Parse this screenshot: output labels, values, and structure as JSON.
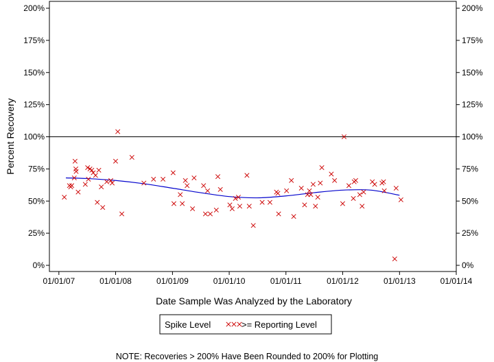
{
  "chart_data": {
    "type": "scatter",
    "xlabel": "Date Sample Was Analyzed by the Laboratory",
    "ylabel": "Percent Recovery",
    "x_ticks": [
      "01/01/07",
      "01/01/08",
      "01/01/09",
      "01/01/10",
      "01/01/11",
      "01/01/12",
      "01/01/13",
      "01/01/14"
    ],
    "y_ticks": [
      "0%",
      "25%",
      "50%",
      "75%",
      "100%",
      "125%",
      "150%",
      "175%",
      "200%"
    ],
    "ylim": [
      0,
      200
    ],
    "xlim": [
      "2006-11-01",
      "2014-01-01"
    ],
    "reference_line": 100,
    "colors": {
      "points": "#cc0000",
      "trend": "#0000cc",
      "reference": "#000000"
    },
    "series": [
      {
        "legend_group": "Spike Level",
        "name": ">= Reporting Level",
        "marker": "x",
        "points": [
          [
            "2007-02-05",
            53
          ],
          [
            "2007-03-10",
            62
          ],
          [
            "2007-03-18",
            61
          ],
          [
            "2007-03-25",
            62
          ],
          [
            "2007-04-10",
            68
          ],
          [
            "2007-04-15",
            81
          ],
          [
            "2007-04-20",
            75
          ],
          [
            "2007-04-22",
            73
          ],
          [
            "2007-05-05",
            57
          ],
          [
            "2007-06-20",
            63
          ],
          [
            "2007-07-05",
            76
          ],
          [
            "2007-07-10",
            67
          ],
          [
            "2007-07-20",
            75
          ],
          [
            "2007-08-01",
            74
          ],
          [
            "2007-08-10",
            72
          ],
          [
            "2007-08-25",
            70
          ],
          [
            "2007-09-05",
            49
          ],
          [
            "2007-09-15",
            74
          ],
          [
            "2007-10-01",
            61
          ],
          [
            "2007-10-10",
            45
          ],
          [
            "2007-11-05",
            65
          ],
          [
            "2007-12-01",
            66
          ],
          [
            "2007-12-10",
            64
          ],
          [
            "2008-01-01",
            81
          ],
          [
            "2008-01-15",
            104
          ],
          [
            "2008-02-10",
            40
          ],
          [
            "2008-04-15",
            84
          ],
          [
            "2008-07-01",
            64
          ],
          [
            "2008-09-01",
            67
          ],
          [
            "2008-11-01",
            67
          ],
          [
            "2009-01-05",
            72
          ],
          [
            "2009-01-10",
            48
          ],
          [
            "2009-02-20",
            55
          ],
          [
            "2009-03-05",
            48
          ],
          [
            "2009-03-25",
            66
          ],
          [
            "2009-04-05",
            62
          ],
          [
            "2009-05-10",
            44
          ],
          [
            "2009-05-20",
            68
          ],
          [
            "2009-07-20",
            62
          ],
          [
            "2009-08-01",
            40
          ],
          [
            "2009-08-15",
            58
          ],
          [
            "2009-09-01",
            40
          ],
          [
            "2009-10-10",
            43
          ],
          [
            "2009-10-20",
            69
          ],
          [
            "2009-11-05",
            59
          ],
          [
            "2010-01-05",
            47
          ],
          [
            "2010-01-20",
            44
          ],
          [
            "2010-02-10",
            52
          ],
          [
            "2010-03-01",
            53
          ],
          [
            "2010-03-10",
            46
          ],
          [
            "2010-04-25",
            70
          ],
          [
            "2010-05-10",
            46
          ],
          [
            "2010-06-05",
            31
          ],
          [
            "2010-08-01",
            49
          ],
          [
            "2010-09-20",
            49
          ],
          [
            "2010-11-01",
            57
          ],
          [
            "2010-11-10",
            56
          ],
          [
            "2010-11-15",
            40
          ],
          [
            "2011-01-05",
            58
          ],
          [
            "2011-02-05",
            66
          ],
          [
            "2011-02-20",
            38
          ],
          [
            "2011-04-10",
            60
          ],
          [
            "2011-05-01",
            47
          ],
          [
            "2011-05-20",
            55
          ],
          [
            "2011-06-01",
            58
          ],
          [
            "2011-06-10",
            55
          ],
          [
            "2011-06-25",
            63
          ],
          [
            "2011-07-10",
            46
          ],
          [
            "2011-07-25",
            53
          ],
          [
            "2011-08-10",
            64
          ],
          [
            "2011-08-20",
            76
          ],
          [
            "2011-10-20",
            71
          ],
          [
            "2011-11-10",
            66
          ],
          [
            "2012-01-01",
            48
          ],
          [
            "2012-01-10",
            100
          ],
          [
            "2012-02-10",
            62
          ],
          [
            "2012-03-10",
            52
          ],
          [
            "2012-03-15",
            65
          ],
          [
            "2012-03-25",
            66
          ],
          [
            "2012-04-20",
            55
          ],
          [
            "2012-05-05",
            46
          ],
          [
            "2012-05-15",
            57
          ],
          [
            "2012-07-10",
            65
          ],
          [
            "2012-07-25",
            63
          ],
          [
            "2012-09-10",
            64
          ],
          [
            "2012-09-20",
            65
          ],
          [
            "2012-09-25",
            58
          ],
          [
            "2012-12-01",
            5
          ],
          [
            "2012-12-10",
            60
          ],
          [
            "2013-01-10",
            51
          ]
        ]
      }
    ],
    "trend_line": [
      [
        "2007-02-15",
        68
      ],
      [
        "2007-07-01",
        67.5
      ],
      [
        "2008-01-01",
        66
      ],
      [
        "2008-07-01",
        63.5
      ],
      [
        "2009-01-01",
        60
      ],
      [
        "2009-07-01",
        56.5
      ],
      [
        "2010-01-01",
        53.5
      ],
      [
        "2010-07-01",
        52.5
      ],
      [
        "2011-01-01",
        54
      ],
      [
        "2011-07-01",
        56.5
      ],
      [
        "2012-01-01",
        58.5
      ],
      [
        "2012-07-01",
        58.5
      ],
      [
        "2013-01-01",
        54.5
      ]
    ],
    "legend": {
      "group_label": "Spike Level",
      "entry_label": ">= Reporting Level",
      "placement": "bottom-center"
    },
    "note": "NOTE: Recoveries > 200% Have Been Rounded to 200% for Plotting"
  }
}
